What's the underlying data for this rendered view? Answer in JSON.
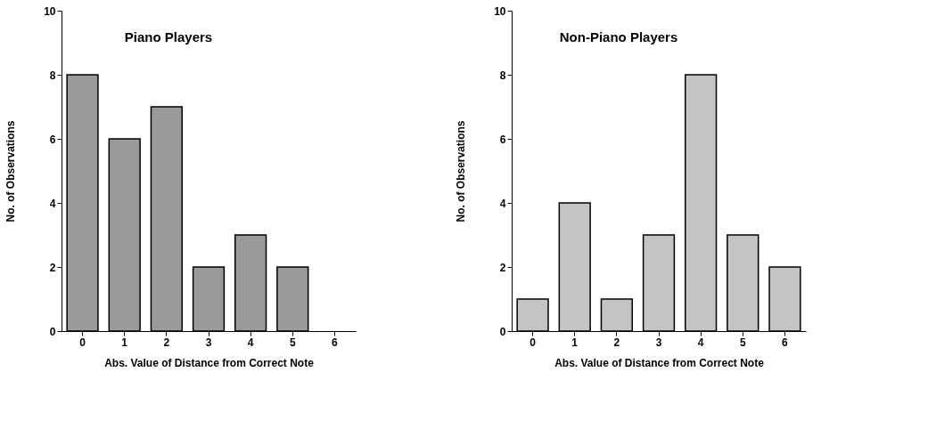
{
  "chart_data": [
    {
      "type": "bar",
      "title": "Piano  Players",
      "xlabel": "Abs.  Value  of  Distance  from  Correct  Note",
      "ylabel": "No.  of  Observations",
      "categories": [
        "0",
        "1",
        "2",
        "3",
        "4",
        "5",
        "6"
      ],
      "values": [
        8,
        6,
        7,
        2,
        3,
        2,
        0
      ],
      "color": "#9a9a9a",
      "ylim": [
        0,
        10
      ],
      "yticks": [
        0,
        2,
        4,
        6,
        8,
        10
      ],
      "grid": false
    },
    {
      "type": "bar",
      "title": "Non-Piano  Players",
      "xlabel": "Abs.  Value  of  Distance  from  Correct  Note",
      "ylabel": "No.  of  Observations",
      "categories": [
        "0",
        "1",
        "2",
        "3",
        "4",
        "5",
        "6"
      ],
      "values": [
        1,
        4,
        1,
        3,
        8,
        3,
        2
      ],
      "color": "#c4c4c4",
      "ylim": [
        0,
        10
      ],
      "yticks": [
        0,
        2,
        4,
        6,
        8,
        10
      ],
      "grid": false
    }
  ]
}
